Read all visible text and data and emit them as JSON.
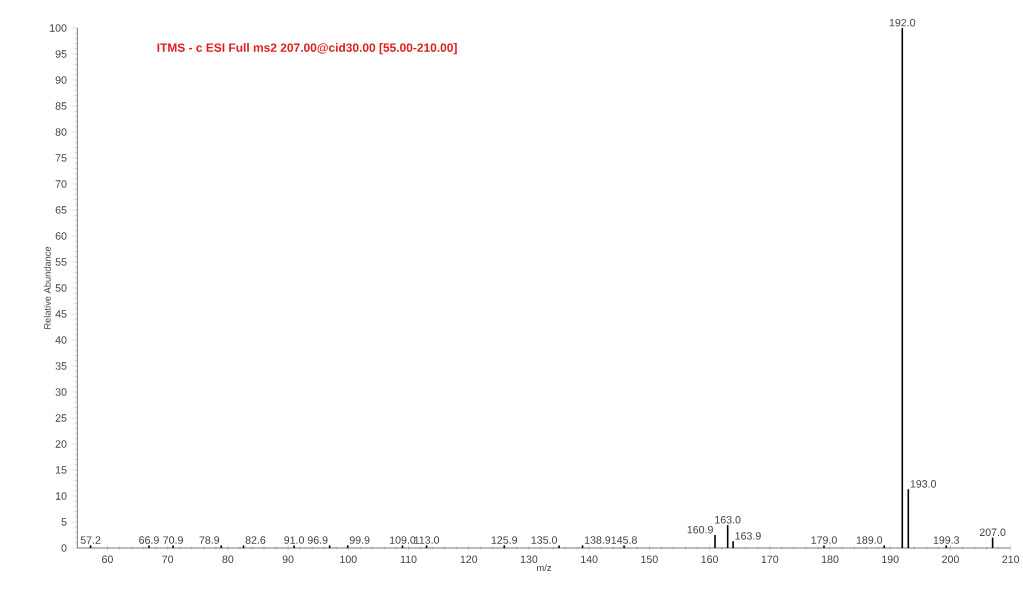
{
  "chart_data": {
    "type": "bar",
    "title": "ITMS - c ESI Full ms2 207.00@cid30.00 [55.00-210.00]",
    "xlabel": "m/z",
    "ylabel": "Relative Abundance",
    "x": [
      57.2,
      66.9,
      70.9,
      78.9,
      82.6,
      91.0,
      96.9,
      99.9,
      109.0,
      113.0,
      125.9,
      135.0,
      138.9,
      145.8,
      160.9,
      163.0,
      163.9,
      179.0,
      189.0,
      192.0,
      193.0,
      199.3,
      207.0
    ],
    "values": [
      0.5,
      0.5,
      0.5,
      0.5,
      0.5,
      0.5,
      0.5,
      0.5,
      0.5,
      0.5,
      0.5,
      0.5,
      0.5,
      0.5,
      2.5,
      4.4,
      1.3,
      0.5,
      0.5,
      100,
      11.3,
      0.5,
      2
    ],
    "color": "#000000",
    "annotations": [
      {
        "text": "57.2",
        "x": 57.2,
        "y": 0.5
      },
      {
        "text": "66.9",
        "x": 66.9,
        "y": 0.5
      },
      {
        "text": "70.9",
        "x": 70.9,
        "y": 0.5
      },
      {
        "text": "78.9",
        "x": 78.9,
        "y": 0.5
      },
      {
        "text": "82.6",
        "x": 82.6,
        "y": 0.5
      },
      {
        "text": "91.0",
        "x": 91.0,
        "y": 0.5
      },
      {
        "text": "96.9",
        "x": 96.9,
        "y": 0.5
      },
      {
        "text": "99.9",
        "x": 99.9,
        "y": 0.5
      },
      {
        "text": "109.0",
        "x": 109.0,
        "y": 0.5
      },
      {
        "text": "113.0",
        "x": 113.0,
        "y": 0.5
      },
      {
        "text": "125.9",
        "x": 125.9,
        "y": 0.5
      },
      {
        "text": "135.0",
        "x": 135.0,
        "y": 0.5
      },
      {
        "text": "138.9",
        "x": 138.9,
        "y": 0.5
      },
      {
        "text": "145.8",
        "x": 145.8,
        "y": 0.5
      },
      {
        "text": "160.9",
        "x": 160.9,
        "y": 2.5
      },
      {
        "text": "163.0",
        "x": 163.0,
        "y": 4.4
      },
      {
        "text": "163.9",
        "x": 163.9,
        "y": 1.3
      },
      {
        "text": "179.0",
        "x": 179.0,
        "y": 0.5
      },
      {
        "text": "189.0",
        "x": 189.0,
        "y": 0.5
      },
      {
        "text": "192.0",
        "x": 192.0,
        "y": 100
      },
      {
        "text": "193.0",
        "x": 193.0,
        "y": 11.3
      },
      {
        "text": "199.3",
        "x": 199.3,
        "y": 0.5
      },
      {
        "text": "207.0",
        "x": 207.0,
        "y": 2
      }
    ],
    "xlim": [
      55,
      210
    ],
    "xticks": [
      60,
      70,
      80,
      90,
      100,
      110,
      120,
      130,
      140,
      150,
      160,
      170,
      180,
      190,
      200,
      210
    ],
    "ylim": [
      0,
      100
    ],
    "yticks": [
      0,
      5,
      10,
      15,
      20,
      25,
      30,
      35,
      40,
      45,
      50,
      55,
      60,
      65,
      70,
      75,
      80,
      85,
      90,
      95,
      100
    ],
    "grid": false
  }
}
